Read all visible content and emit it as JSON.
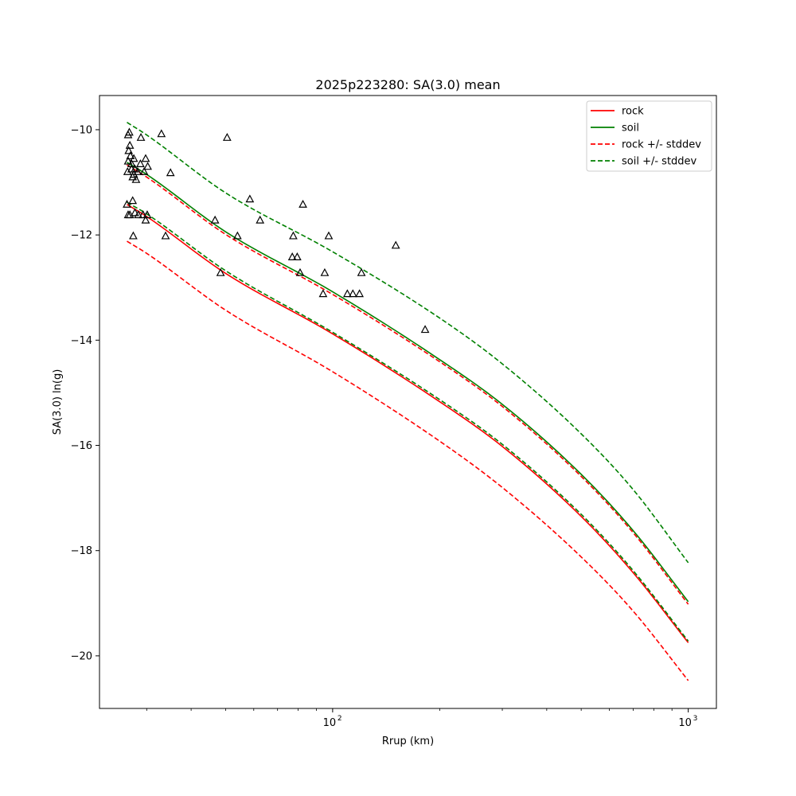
{
  "chart_data": {
    "type": "scatter",
    "title": "2025p223280: SA(3.0) mean",
    "xlabel": "Rrup (km)",
    "ylabel": "SA(3.0) ln(g)",
    "xscale": "log",
    "xlim": [
      22.1,
      1200
    ],
    "ylim": [
      -21.0,
      -9.35
    ],
    "xticks": [
      {
        "value": 100,
        "base": "10",
        "exp": "2"
      },
      {
        "value": 1000,
        "base": "10",
        "exp": "3"
      }
    ],
    "yticks": [
      -20,
      -18,
      -16,
      -14,
      -12,
      -10
    ],
    "grid": false,
    "legend_position": "top-right",
    "series": [
      {
        "name": "rock",
        "color": "#ff0000",
        "dash": false,
        "x": [
          26.4,
          30,
          50,
          100,
          200,
          300,
          500,
          700,
          1000
        ],
        "y": [
          -11.42,
          -11.65,
          -12.73,
          -13.88,
          -15.17,
          -16.02,
          -17.35,
          -18.42,
          -19.75
        ]
      },
      {
        "name": "soil",
        "color": "#008000",
        "dash": false,
        "x": [
          26.4,
          30,
          50,
          100,
          200,
          300,
          500,
          700,
          1000
        ],
        "y": [
          -10.62,
          -10.85,
          -11.94,
          -13.08,
          -14.37,
          -15.22,
          -16.55,
          -17.62,
          -18.97
        ]
      },
      {
        "name": "rock +/- stddev",
        "color": "#ff0000",
        "dash": true,
        "legend": true,
        "x": [
          26.4,
          30,
          50,
          100,
          200,
          300,
          500,
          700,
          1000
        ],
        "y": [
          -12.12,
          -12.35,
          -13.43,
          -14.6,
          -15.92,
          -16.8,
          -18.12,
          -19.15,
          -20.47
        ]
      },
      {
        "name": "",
        "color": "#ff0000",
        "dash": true,
        "legend": false,
        "x": [
          26.4,
          30,
          50,
          100,
          200,
          300,
          500,
          700,
          1000
        ],
        "y": [
          -10.67,
          -10.9,
          -11.99,
          -13.13,
          -14.41,
          -15.26,
          -16.59,
          -17.66,
          -19.02
        ]
      },
      {
        "name": "soil +/- stddev",
        "color": "#008000",
        "dash": true,
        "legend": true,
        "x": [
          26.4,
          30,
          50,
          100,
          200,
          300,
          500,
          700,
          1000
        ],
        "y": [
          -9.86,
          -10.1,
          -11.2,
          -12.32,
          -13.58,
          -14.45,
          -15.78,
          -16.84,
          -18.23
        ]
      },
      {
        "name": "",
        "color": "#008000",
        "dash": true,
        "legend": false,
        "x": [
          26.4,
          30,
          50,
          100,
          200,
          300,
          500,
          700,
          1000
        ],
        "y": [
          -11.38,
          -11.6,
          -12.68,
          -13.85,
          -15.13,
          -15.98,
          -17.31,
          -18.38,
          -19.72
        ]
      }
    ],
    "observations": {
      "marker": "triangle",
      "points": [
        [
          26.6,
          -10.1
        ],
        [
          26.8,
          -10.05
        ],
        [
          26.7,
          -10.4
        ],
        [
          26.9,
          -10.3
        ],
        [
          26.6,
          -10.6
        ],
        [
          27.0,
          -10.5
        ],
        [
          27.2,
          -10.65
        ],
        [
          26.5,
          -10.8
        ],
        [
          27.4,
          -10.9
        ],
        [
          27.8,
          -10.75
        ],
        [
          27.6,
          -10.55
        ],
        [
          28.0,
          -10.95
        ],
        [
          28.3,
          -10.8
        ],
        [
          28.8,
          -10.65
        ],
        [
          29.5,
          -10.8
        ],
        [
          29.8,
          -10.55
        ],
        [
          30.2,
          -10.7
        ],
        [
          27.2,
          -10.75
        ],
        [
          27.6,
          -10.85
        ],
        [
          28.9,
          -10.15
        ],
        [
          26.4,
          -11.42
        ],
        [
          26.9,
          -11.62
        ],
        [
          27.4,
          -11.35
        ],
        [
          27.8,
          -11.58
        ],
        [
          26.6,
          -11.62
        ],
        [
          28.4,
          -11.62
        ],
        [
          29.3,
          -11.62
        ],
        [
          29.8,
          -11.72
        ],
        [
          30.1,
          -11.62
        ],
        [
          27.5,
          -12.02
        ],
        [
          33.0,
          -10.08
        ],
        [
          33.9,
          -12.02
        ],
        [
          35.0,
          -10.82
        ],
        [
          46.7,
          -11.72
        ],
        [
          48.4,
          -12.72
        ],
        [
          50.5,
          -10.15
        ],
        [
          54.0,
          -12.02
        ],
        [
          58.5,
          -11.32
        ],
        [
          62.5,
          -11.72
        ],
        [
          77.0,
          -12.42
        ],
        [
          77.5,
          -12.02
        ],
        [
          79.5,
          -12.42
        ],
        [
          81.0,
          -12.72
        ],
        [
          82.5,
          -11.42
        ],
        [
          94.0,
          -13.12
        ],
        [
          95.0,
          -12.72
        ],
        [
          97.5,
          -12.02
        ],
        [
          110.0,
          -13.12
        ],
        [
          114.0,
          -13.12
        ],
        [
          119.0,
          -13.12
        ],
        [
          120.5,
          -12.72
        ],
        [
          150.5,
          -12.2
        ],
        [
          182.0,
          -13.8
        ]
      ]
    }
  }
}
